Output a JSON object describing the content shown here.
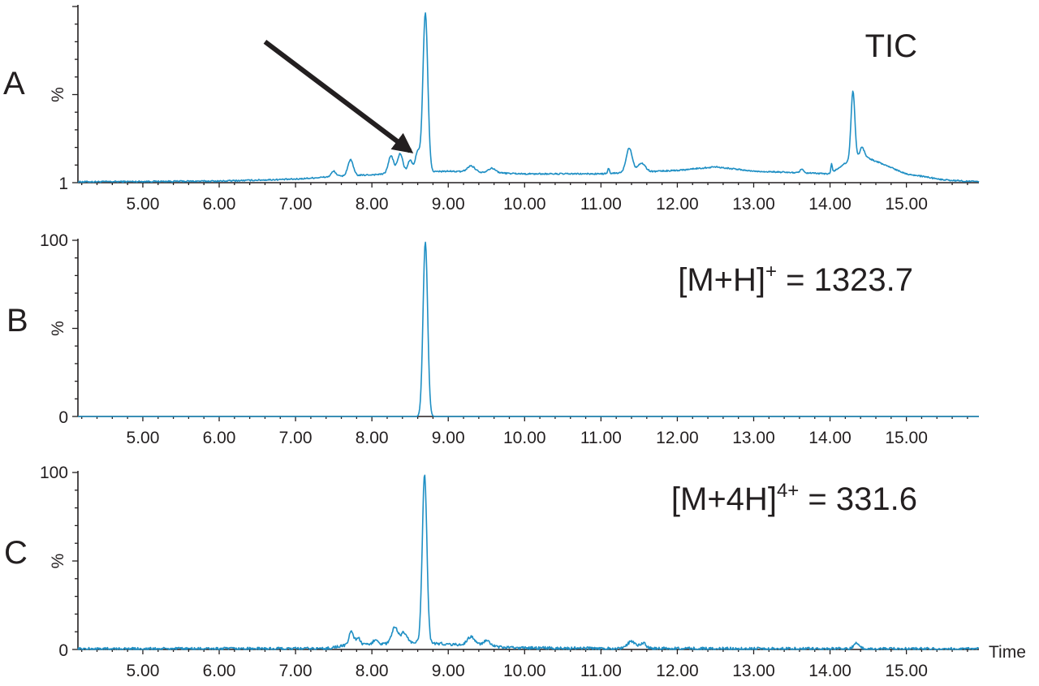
{
  "colors": {
    "trace": "#1f8fc4",
    "ink": "#231f20"
  },
  "x_axis_label": "Time",
  "chart_data": [
    {
      "panel": "A",
      "type": "line",
      "annotation": {
        "text": "TIC",
        "superscript": "",
        "suffix": ""
      },
      "ylabel": "%",
      "ytick_labels": {
        "bottom": "1",
        "top": ""
      },
      "xlim": [
        4.15,
        15.95
      ],
      "ylim": [
        0,
        100
      ],
      "xticks": [
        "5.00",
        "6.00",
        "7.00",
        "8.00",
        "9.00",
        "10.00",
        "11.00",
        "12.00",
        "13.00",
        "14.00",
        "15.00"
      ],
      "arrow": {
        "from": [
          6.6,
          80
        ],
        "to": [
          8.5,
          18
        ]
      },
      "noise": 0.4,
      "baseline": [
        [
          4.15,
          0.5
        ],
        [
          6.0,
          0.9
        ],
        [
          7.0,
          2.0
        ],
        [
          7.5,
          3.5
        ],
        [
          8.0,
          4.5
        ],
        [
          8.6,
          6
        ],
        [
          9.0,
          6.5
        ],
        [
          10.0,
          5
        ],
        [
          11.0,
          5
        ],
        [
          12.0,
          7
        ],
        [
          12.5,
          9
        ],
        [
          13.0,
          6.5
        ],
        [
          14.0,
          5
        ],
        [
          14.3,
          14
        ],
        [
          14.5,
          14
        ],
        [
          15.0,
          5
        ],
        [
          15.5,
          1.5
        ],
        [
          15.95,
          0.5
        ]
      ],
      "peaks": [
        {
          "rt": 7.5,
          "h": 3,
          "w": 0.03
        },
        {
          "rt": 7.72,
          "h": 9,
          "w": 0.035
        },
        {
          "rt": 8.25,
          "h": 10,
          "w": 0.035
        },
        {
          "rt": 8.37,
          "h": 11,
          "w": 0.035
        },
        {
          "rt": 8.5,
          "h": 7,
          "w": 0.03
        },
        {
          "rt": 8.6,
          "h": 12,
          "w": 0.03
        },
        {
          "rt": 8.7,
          "h": 90,
          "w": 0.032
        },
        {
          "rt": 9.3,
          "h": 3.5,
          "w": 0.05
        },
        {
          "rt": 9.57,
          "h": 2.5,
          "w": 0.05
        },
        {
          "rt": 11.1,
          "h": 3,
          "w": 0.01
        },
        {
          "rt": 11.37,
          "h": 14,
          "w": 0.04
        },
        {
          "rt": 11.53,
          "h": 5,
          "w": 0.05
        },
        {
          "rt": 13.63,
          "h": 2,
          "w": 0.02
        },
        {
          "rt": 14.02,
          "h": 5,
          "w": 0.01
        },
        {
          "rt": 14.3,
          "h": 38,
          "w": 0.025
        },
        {
          "rt": 14.42,
          "h": 6,
          "w": 0.03
        }
      ]
    },
    {
      "panel": "B",
      "type": "line",
      "annotation": {
        "text": "[M+H]",
        "superscript": "+",
        "suffix": " = 1323.7"
      },
      "ylabel": "%",
      "ytick_labels": {
        "bottom": "0",
        "top": "100"
      },
      "xlim": [
        4.15,
        15.95
      ],
      "ylim": [
        0,
        100
      ],
      "xticks": [
        "5.00",
        "6.00",
        "7.00",
        "8.00",
        "9.00",
        "10.00",
        "11.00",
        "12.00",
        "13.00",
        "14.00",
        "15.00"
      ],
      "noise": 0,
      "baseline": [
        [
          4.15,
          0
        ],
        [
          15.95,
          0
        ]
      ],
      "peaks": [
        {
          "rt": 8.7,
          "h": 99,
          "w": 0.03
        }
      ]
    },
    {
      "panel": "C",
      "type": "line",
      "annotation": {
        "text": "[M+4H]",
        "superscript": "4+",
        "suffix": " = 331.6"
      },
      "ylabel": "%",
      "ytick_labels": {
        "bottom": "0",
        "top": "100"
      },
      "xlim": [
        4.15,
        15.95
      ],
      "ylim": [
        0,
        100
      ],
      "xticks": [
        "5.00",
        "6.00",
        "7.00",
        "8.00",
        "9.00",
        "10.00",
        "11.00",
        "12.00",
        "13.00",
        "14.00",
        "15.00"
      ],
      "noise": 0.8,
      "baseline": [
        [
          4.15,
          0.3
        ],
        [
          7.4,
          0.5
        ],
        [
          7.6,
          2
        ],
        [
          8.6,
          4
        ],
        [
          9.0,
          3
        ],
        [
          9.8,
          1
        ],
        [
          11.0,
          0.6
        ],
        [
          15.95,
          0.3
        ]
      ],
      "peaks": [
        {
          "rt": 7.73,
          "h": 8,
          "w": 0.03
        },
        {
          "rt": 7.82,
          "h": 4,
          "w": 0.03
        },
        {
          "rt": 8.05,
          "h": 3,
          "w": 0.03
        },
        {
          "rt": 8.3,
          "h": 9,
          "w": 0.04
        },
        {
          "rt": 8.42,
          "h": 6,
          "w": 0.04
        },
        {
          "rt": 8.69,
          "h": 95,
          "w": 0.03
        },
        {
          "rt": 9.3,
          "h": 5,
          "w": 0.05
        },
        {
          "rt": 9.5,
          "h": 3,
          "w": 0.05
        },
        {
          "rt": 11.4,
          "h": 4,
          "w": 0.05
        },
        {
          "rt": 11.55,
          "h": 3,
          "w": 0.04
        },
        {
          "rt": 14.35,
          "h": 3,
          "w": 0.04
        }
      ]
    }
  ]
}
